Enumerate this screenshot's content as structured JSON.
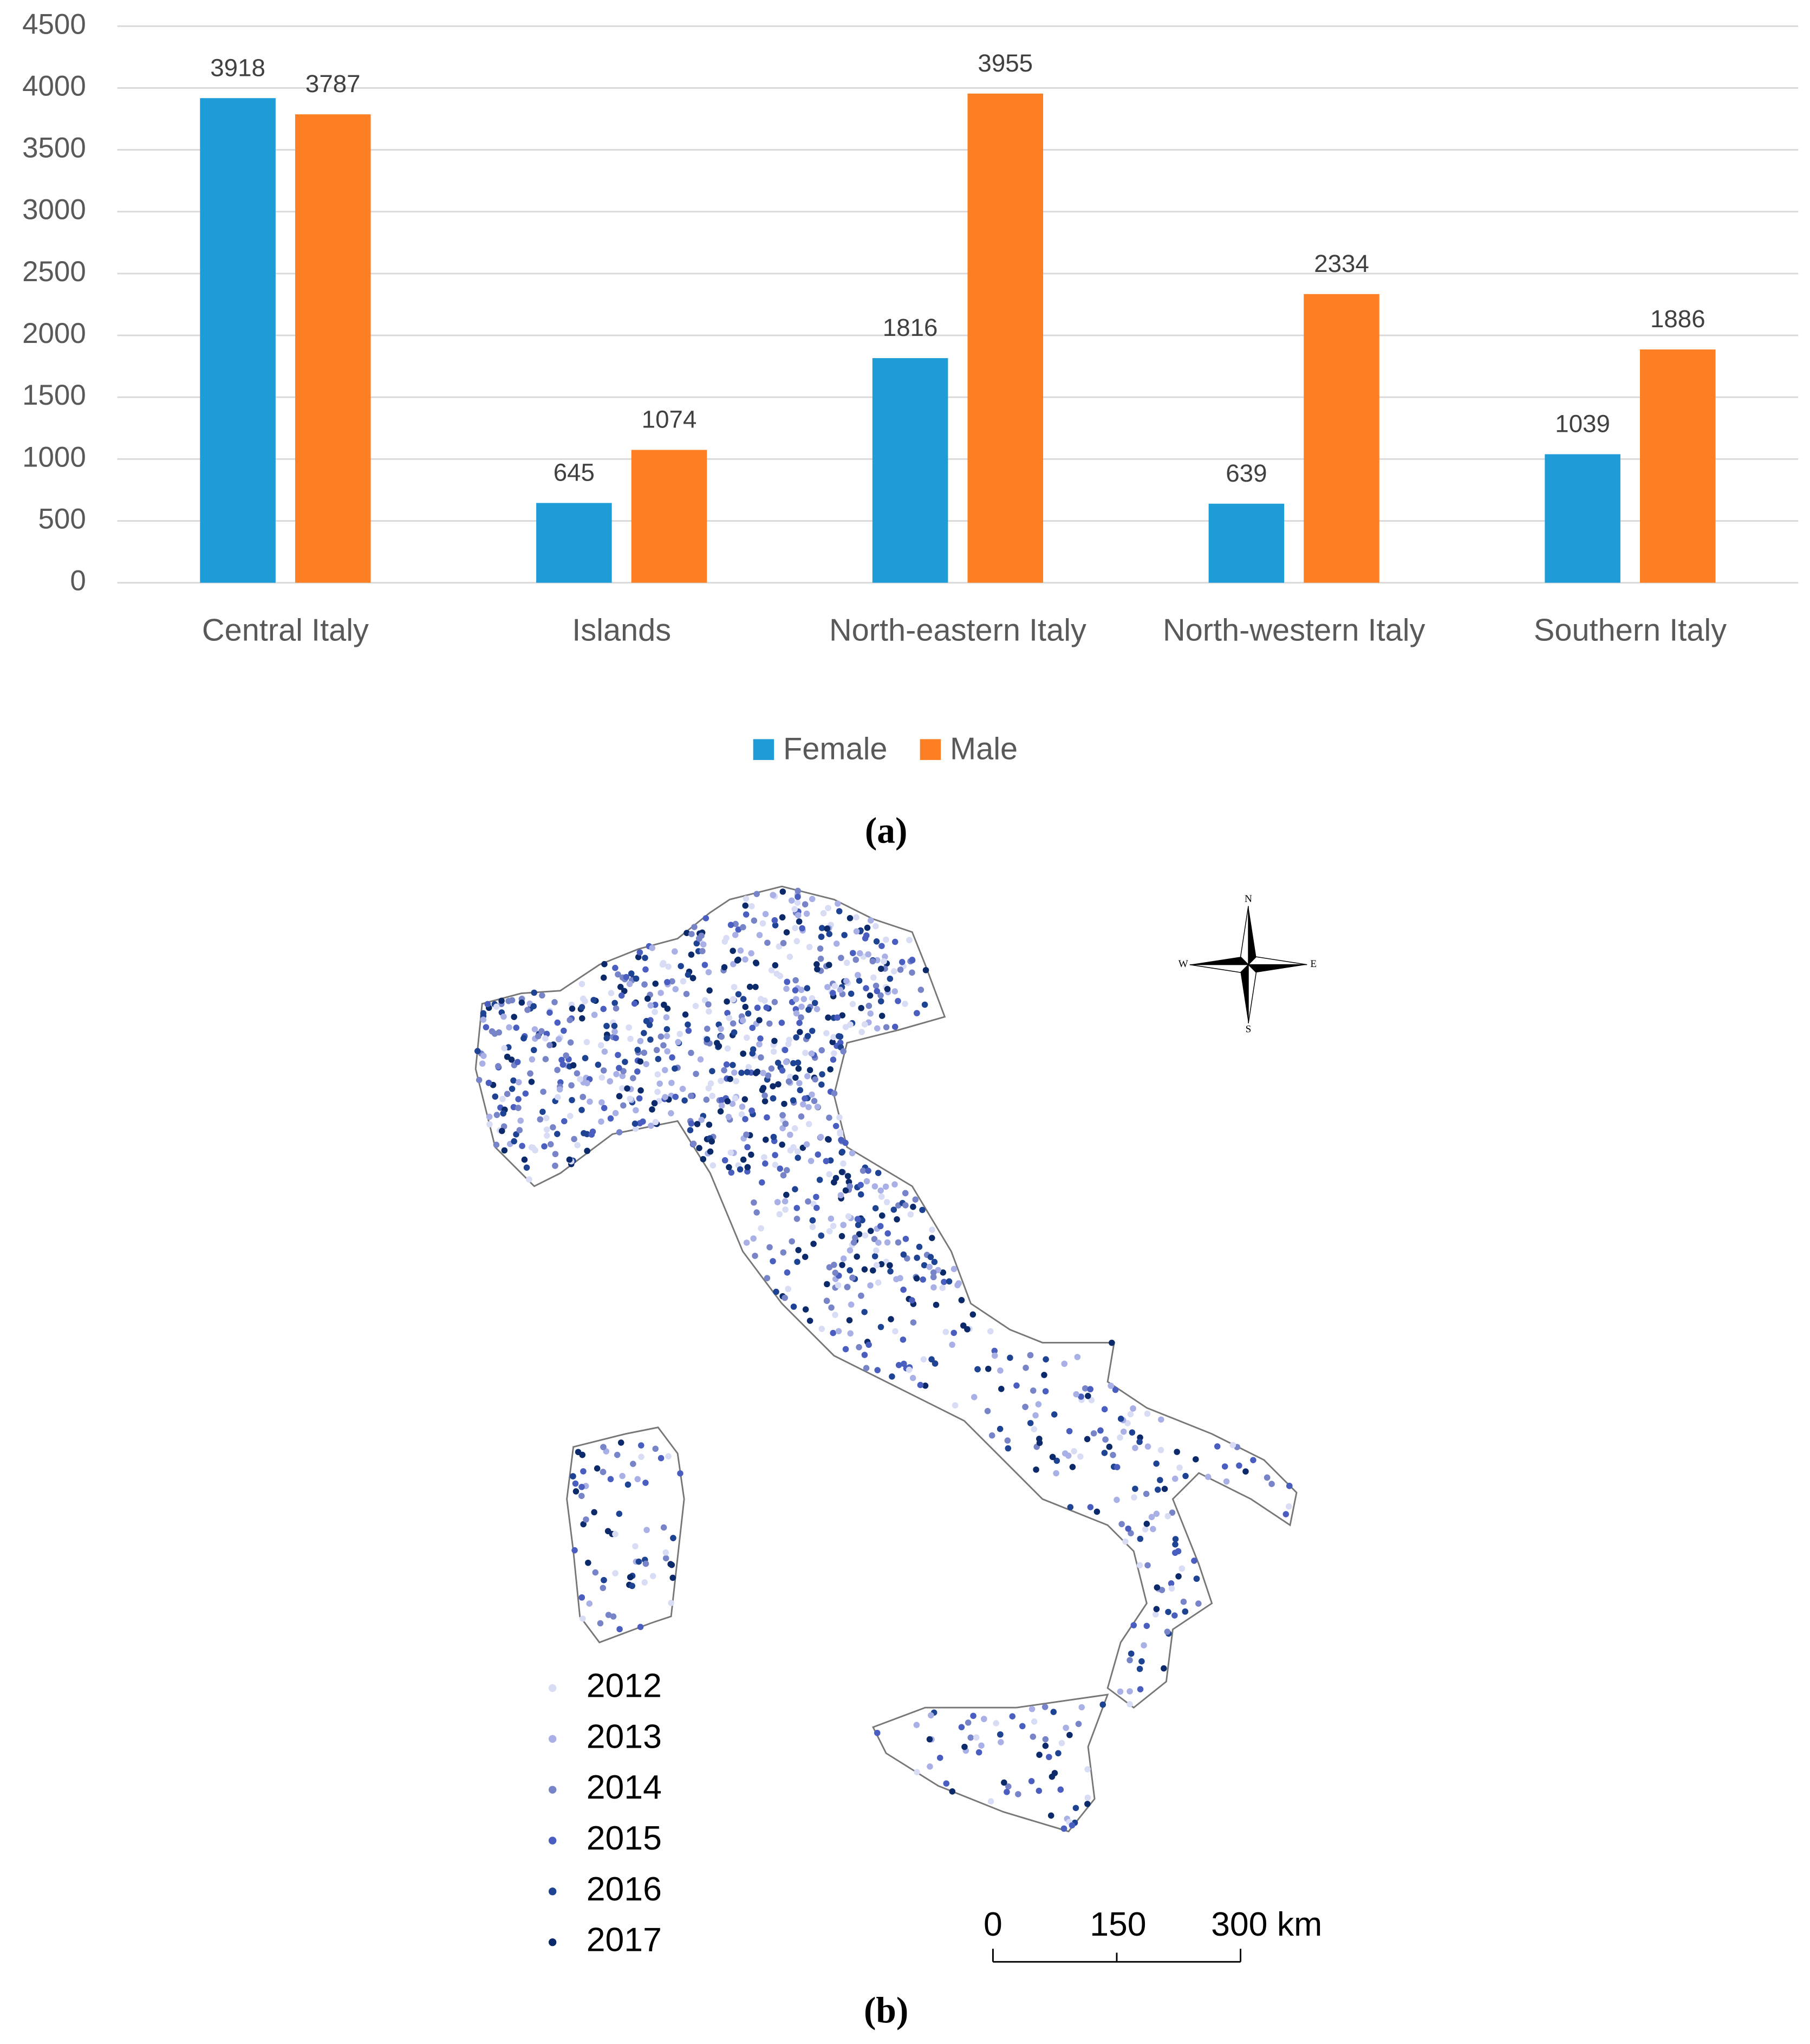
{
  "chart_data": {
    "type": "bar",
    "categories": [
      "Central Italy",
      "Islands",
      "North-eastern Italy",
      "North-western Italy",
      "Southern Italy"
    ],
    "series": [
      {
        "name": "Female",
        "color": "#1e9cd7",
        "values": [
          3918,
          645,
          1816,
          639,
          1039
        ]
      },
      {
        "name": "Male",
        "color": "#fd7f23",
        "values": [
          3787,
          1074,
          3955,
          2334,
          1886
        ]
      }
    ],
    "ylim": [
      0,
      4500
    ],
    "yticks": [
      0,
      500,
      1000,
      1500,
      2000,
      2500,
      3000,
      3500,
      4000,
      4500
    ],
    "grid": true,
    "legend": "bottom"
  },
  "panel_labels": [
    "(a)",
    "(b)"
  ],
  "map": {
    "legend": [
      {
        "label": "2012",
        "color": "#d8dcf4"
      },
      {
        "label": "2013",
        "color": "#a8b0e6"
      },
      {
        "label": "2014",
        "color": "#7884c8"
      },
      {
        "label": "2015",
        "color": "#4a5ec0"
      },
      {
        "label": "2016",
        "color": "#1e4392"
      },
      {
        "label": "2017",
        "color": "#0c2a6a"
      }
    ],
    "scale_labels": [
      "0",
      "150",
      "300 km"
    ],
    "compass": [
      "N",
      "E",
      "S",
      "W"
    ]
  }
}
